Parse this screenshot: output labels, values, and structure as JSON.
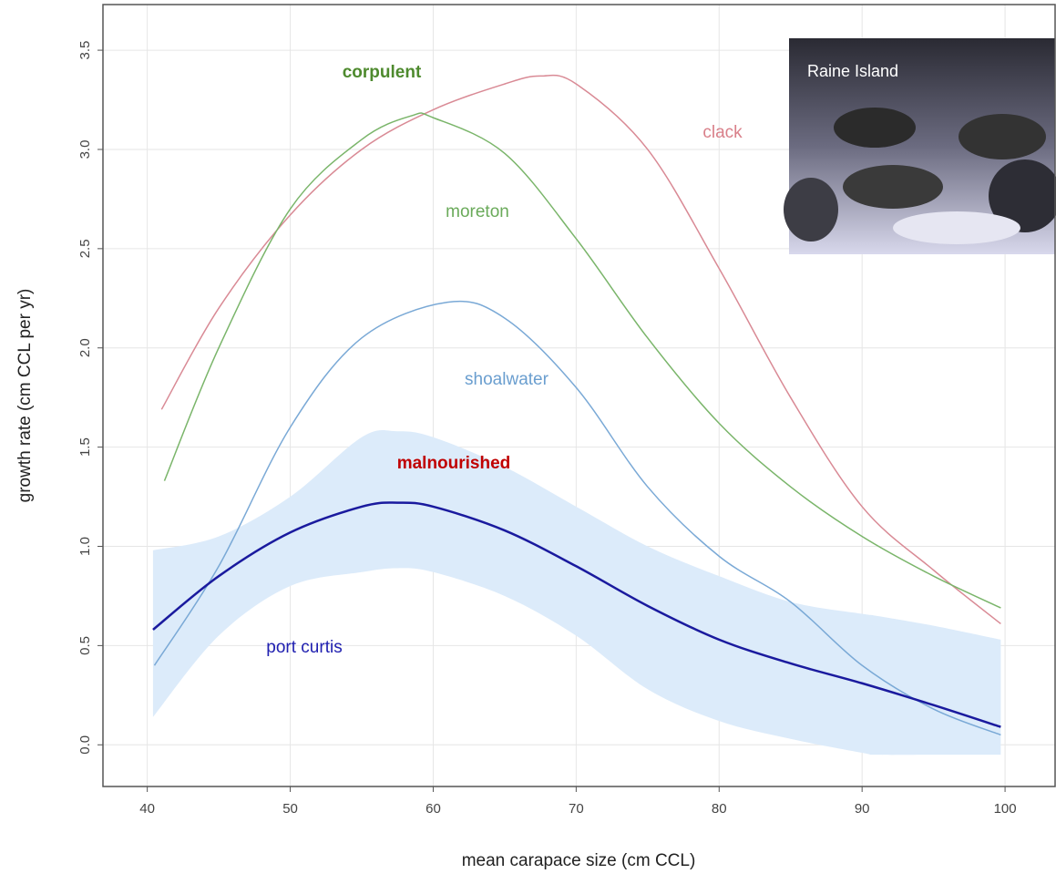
{
  "chart_data": {
    "type": "line",
    "xlabel": "mean carapace size (cm CCL)",
    "ylabel": "growth rate (cm CCL per yr)",
    "xlim": [
      36.9,
      103.5
    ],
    "ylim": [
      -0.21,
      3.73
    ],
    "xticks": [
      40,
      50,
      60,
      70,
      80,
      90,
      100
    ],
    "yticks": [
      {
        "value": 0,
        "label": "0.0"
      },
      0.5,
      {
        "value": 1,
        "label": "1.0"
      },
      1.5,
      {
        "value": 2,
        "label": "2.0"
      },
      2.5,
      {
        "value": 3,
        "label": "3.0"
      },
      3.5
    ],
    "grid": true,
    "series": [
      {
        "color": "#d98a95",
        "x": [
          41,
          45,
          50,
          55,
          60,
          65,
          67.5,
          70,
          75,
          80,
          85,
          90,
          95,
          99.7
        ],
        "values": [
          1.69,
          2.2,
          2.67,
          3.0,
          3.2,
          3.33,
          3.37,
          3.33,
          3.0,
          2.4,
          1.75,
          1.2,
          0.88,
          0.61
        ]
      },
      {
        "color": "#7ab56a",
        "x": [
          41.2,
          45,
          50,
          55,
          58.5,
          60,
          65,
          70,
          75,
          80,
          85,
          90,
          95,
          99.7
        ],
        "values": [
          1.33,
          2.0,
          2.7,
          3.05,
          3.17,
          3.16,
          2.98,
          2.55,
          2.05,
          1.62,
          1.3,
          1.05,
          0.85,
          0.69
        ]
      },
      {
        "color": "#7aa9d6",
        "x": [
          40.5,
          45,
          50,
          55,
          61,
          65,
          70,
          75,
          80,
          85,
          90,
          95,
          99.7
        ],
        "values": [
          0.4,
          0.9,
          1.6,
          2.05,
          2.23,
          2.15,
          1.8,
          1.3,
          0.95,
          0.72,
          0.4,
          0.18,
          0.05
        ]
      },
      {
        "color": "#1a1a9e",
        "width": 2.5,
        "x": [
          40.4,
          45,
          50,
          55,
          57.5,
          60,
          65,
          70,
          75,
          80,
          85,
          90,
          95,
          99.7
        ],
        "values": [
          0.58,
          0.85,
          1.07,
          1.2,
          1.22,
          1.2,
          1.08,
          0.9,
          0.7,
          0.53,
          0.41,
          0.31,
          0.2,
          0.09
        ]
      }
    ],
    "band": {
      "color": "#dcebfa",
      "x": [
        40.4,
        45,
        50,
        55,
        57.5,
        60,
        65,
        70,
        75,
        80,
        85,
        90,
        91,
        95,
        99.7
      ],
      "upper": [
        0.98,
        1.05,
        1.25,
        1.55,
        1.58,
        1.55,
        1.4,
        1.2,
        1.0,
        0.85,
        0.72,
        0.66,
        0.65,
        0.6,
        0.53
      ],
      "lower": [
        0.14,
        0.55,
        0.8,
        0.87,
        0.89,
        0.87,
        0.75,
        0.55,
        0.28,
        0.12,
        0.03,
        -0.04,
        -0.05,
        -0.05,
        -0.05
      ]
    },
    "annotations": [
      "corpulent",
      "clack",
      "moreton",
      "shoalwater",
      "malnourished",
      "port curtis"
    ],
    "inset_label": "Raine Island"
  }
}
